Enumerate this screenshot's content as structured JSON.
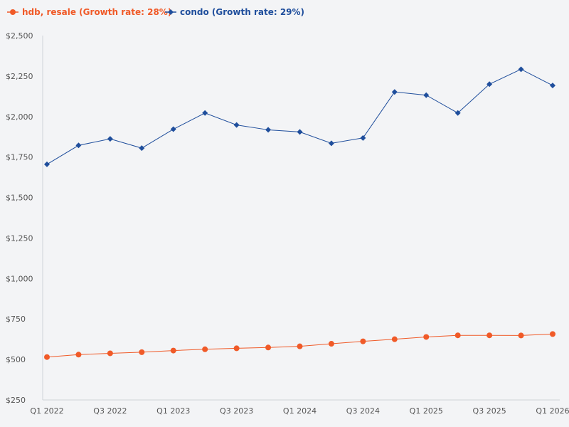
{
  "chart_data": {
    "type": "line",
    "title": "",
    "xlabel": "",
    "ylabel": "",
    "ylim": [
      250,
      2500
    ],
    "yticks": [
      250,
      500,
      750,
      1000,
      1250,
      1500,
      1750,
      2000,
      2250,
      2500
    ],
    "ytick_labels": [
      "$250",
      "$500",
      "$750",
      "$1,000",
      "$1,250",
      "$1,500",
      "$1,750",
      "$2,000",
      "$2,250",
      "$2,500"
    ],
    "categories": [
      "Q1 2022",
      "Q2 2022",
      "Q3 2022",
      "Q4 2022",
      "Q1 2023",
      "Q2 2023",
      "Q3 2023",
      "Q4 2023",
      "Q1 2024",
      "Q2 2024",
      "Q3 2024",
      "Q4 2024",
      "Q1 2025",
      "Q2 2025",
      "Q3 2025",
      "Q4 2025",
      "Q1 2026"
    ],
    "xtick_labels": [
      "Q1 2022",
      "",
      "Q3 2022",
      "",
      "Q1 2023",
      "",
      "Q3 2023",
      "",
      "Q1 2024",
      "",
      "Q3 2024",
      "",
      "Q1 2025",
      "",
      "Q3 2025",
      "",
      "Q1 2026"
    ],
    "legend_position": "top-left",
    "grid": false,
    "series": [
      {
        "name": "hdb, resale (Growth rate: 28%)",
        "color": "#f05a28",
        "marker": "circle",
        "values": [
          515,
          530,
          538,
          545,
          555,
          563,
          569,
          574,
          581,
          597,
          612,
          625,
          639,
          649,
          649,
          648,
          657
        ]
      },
      {
        "name": "condo (Growth rate: 29%)",
        "color": "#1f4e9c",
        "marker": "diamond",
        "values": [
          1705,
          1822,
          1862,
          1805,
          1922,
          2022,
          1948,
          1918,
          1905,
          1835,
          1868,
          2152,
          2132,
          2022,
          2200,
          2292,
          2192
        ]
      }
    ]
  }
}
